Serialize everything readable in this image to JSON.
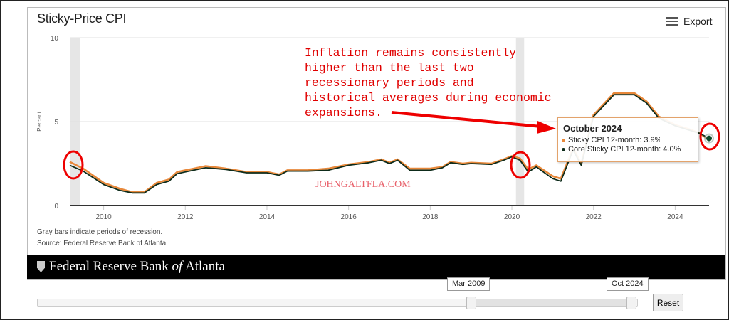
{
  "header": {
    "title": "Sticky-Price CPI",
    "export_label": "Export"
  },
  "chart_data": {
    "type": "line",
    "title": "Sticky-Price CPI",
    "ylabel": "Percent",
    "xlabel": "",
    "ylim": [
      0,
      10
    ],
    "xlim": [
      2009.17,
      2024.83
    ],
    "yticks": [
      "0",
      "5",
      "10"
    ],
    "xticks": [
      "2010",
      "2012",
      "2014",
      "2016",
      "2018",
      "2020",
      "2022",
      "2024"
    ],
    "grid": true,
    "recessions": [
      [
        2009.17,
        2009.42
      ],
      [
        2020.1,
        2020.3
      ]
    ],
    "x": [
      2009.17,
      2009.5,
      2010.0,
      2010.4,
      2010.7,
      2011.0,
      2011.3,
      2011.6,
      2011.8,
      2012.2,
      2012.5,
      2013.0,
      2013.5,
      2014.0,
      2014.3,
      2014.5,
      2015.0,
      2015.5,
      2016.0,
      2016.5,
      2016.8,
      2017.0,
      2017.2,
      2017.5,
      2018.0,
      2018.3,
      2018.5,
      2018.8,
      2019.0,
      2019.5,
      2019.8,
      2020.0,
      2020.2,
      2020.4,
      2020.6,
      2021.0,
      2021.2,
      2021.5,
      2021.7,
      2022.0,
      2022.5,
      2023.0,
      2023.3,
      2023.6,
      2024.0,
      2024.4,
      2024.6,
      2024.83
    ],
    "series": [
      {
        "name": "Sticky CPI 12-month",
        "color": "#e8883a",
        "values": [
          2.6,
          2.2,
          1.35,
          1.0,
          0.8,
          0.8,
          1.35,
          1.55,
          2.0,
          2.2,
          2.35,
          2.2,
          2.0,
          2.0,
          1.85,
          2.1,
          2.1,
          2.2,
          2.45,
          2.6,
          2.75,
          2.55,
          2.75,
          2.2,
          2.2,
          2.3,
          2.6,
          2.5,
          2.55,
          2.5,
          2.75,
          2.95,
          2.8,
          2.15,
          2.4,
          1.75,
          1.6,
          3.4,
          2.5,
          5.4,
          6.7,
          6.7,
          6.2,
          5.3,
          4.8,
          4.5,
          4.3,
          3.9
        ]
      },
      {
        "name": "Core Sticky CPI 12-month",
        "color": "#0d2b1a",
        "values": [
          2.4,
          2.05,
          1.25,
          0.9,
          0.75,
          0.75,
          1.25,
          1.45,
          1.9,
          2.1,
          2.25,
          2.15,
          1.95,
          1.95,
          1.8,
          2.05,
          2.05,
          2.1,
          2.4,
          2.55,
          2.7,
          2.5,
          2.7,
          2.1,
          2.1,
          2.25,
          2.55,
          2.45,
          2.5,
          2.45,
          2.7,
          2.9,
          2.7,
          2.0,
          2.3,
          1.6,
          1.45,
          3.3,
          2.4,
          5.3,
          6.6,
          6.6,
          6.1,
          5.2,
          4.75,
          4.45,
          4.3,
          4.0
        ]
      }
    ],
    "tooltip": {
      "title": "October 2024",
      "rows": [
        "Sticky CPI 12-month: 3.9%",
        "Core Sticky CPI 12-month: 4.0%"
      ]
    },
    "annotation": "Inflation remains consistently\nhigher than the last two\nrecessionary periods and\nhistorical averages during economic\nexpansions.",
    "watermark": "JOHNGALTFLA.COM"
  },
  "footer": {
    "note": "Gray bars indicate periods of recession.",
    "source": "Source: Federal Reserve Bank of Atlanta",
    "brand_pre": "Federal Reserve Bank ",
    "brand_of": "of",
    "brand_post": " Atlanta"
  },
  "navigator": {
    "start_label": "Mar 2009",
    "end_label": "Oct 2024",
    "reset_label": "Reset"
  }
}
